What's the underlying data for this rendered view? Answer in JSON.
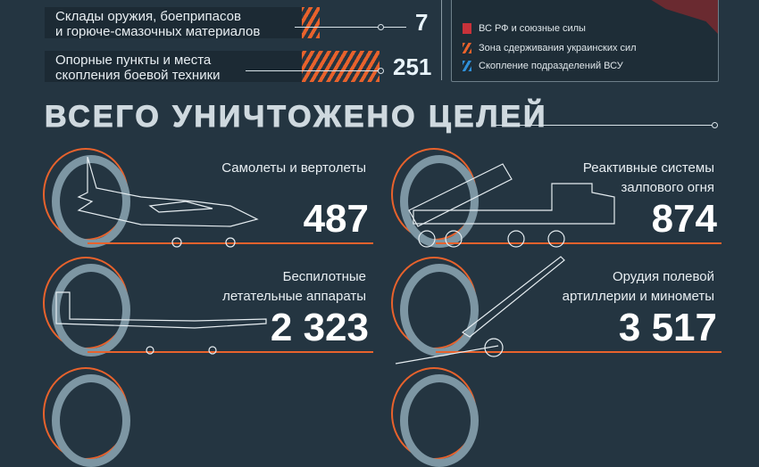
{
  "stats": [
    {
      "label_line1": "Склады оружия, боеприпасов",
      "label_line2": "и горюче-смазочных материалов",
      "value": "7"
    },
    {
      "label_line1": "Опорные пункты и места",
      "label_line2": "скопления боевой техники",
      "value": "251"
    }
  ],
  "legend": {
    "items": [
      {
        "label": "ВС РФ и союзные силы",
        "color": "#c8323a"
      },
      {
        "label": "Зона сдерживания украинских сил",
        "color": "#e8622c"
      },
      {
        "label": "Скопление подразделений ВСУ",
        "color": "#2f8fd8"
      }
    ]
  },
  "section_title": "ВСЕГО УНИЧТОЖЕНО ЦЕЛЕЙ",
  "cards": [
    {
      "label": "Самолеты и вертолеты",
      "value": "487",
      "icon": "jet-icon"
    },
    {
      "label": "Реактивные системы залпового огня",
      "value": "874",
      "icon": "mlrs-truck-icon"
    },
    {
      "label": "Беспилотные летательные аппараты",
      "value": "2 323",
      "icon": "drone-icon"
    },
    {
      "label": "Орудия полевой артиллерии и минометы",
      "value": "3 517",
      "icon": "howitzer-icon"
    }
  ],
  "colors": {
    "background": "#243541",
    "accent": "#e8622c",
    "ring": "#7d96a3"
  }
}
